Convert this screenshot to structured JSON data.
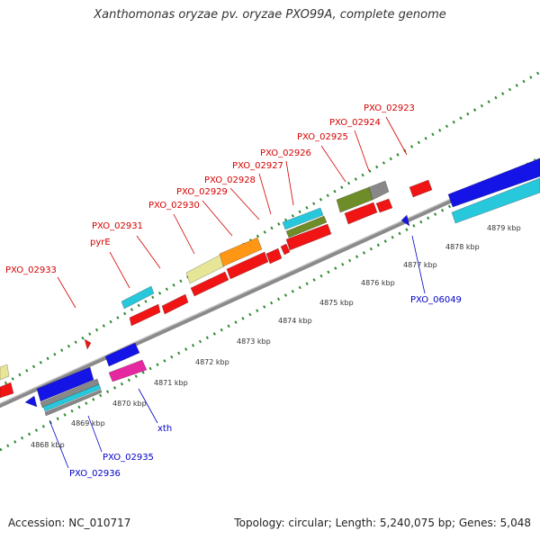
{
  "title": "Xanthomonas oryzae pv. oryzae PXO99A, complete genome",
  "footer": {
    "accession": "Accession: NC_010717",
    "summary": "Topology: circular; Length: 5,240,075 bp; Genes: 5,048"
  },
  "kbp_ticks": [
    "4868 kbp",
    "4869 kbp",
    "4870 kbp",
    "4871 kbp",
    "4872 kbp",
    "4873 kbp",
    "4874 kbp",
    "4875 kbp",
    "4876 kbp",
    "4877 kbp",
    "4878 kbp",
    "4879 kbp"
  ],
  "forward_labels": [
    "PXO_02933",
    "pyrE",
    "PXO_02931",
    "PXO_02930",
    "PXO_02929",
    "PXO_02928",
    "PXO_02927",
    "PXO_02926",
    "PXO_02925",
    "PXO_02924",
    "PXO_02923"
  ],
  "reverse_labels": [
    "PXO_02936",
    "PXO_02935",
    "xth",
    "PXO_06049"
  ],
  "colors": {
    "forward_label": "#d40000",
    "reverse_label": "#0000c8",
    "backbone": "#808080",
    "dotted_scale": "#2d8a2d",
    "cds": "#f01414",
    "blue": "#1414e6",
    "cyan": "#28c8dc",
    "orange": "#ff9614",
    "khaki": "#e6e696",
    "olive": "#6e8c28",
    "magenta": "#e628a0",
    "gray": "#888888"
  }
}
